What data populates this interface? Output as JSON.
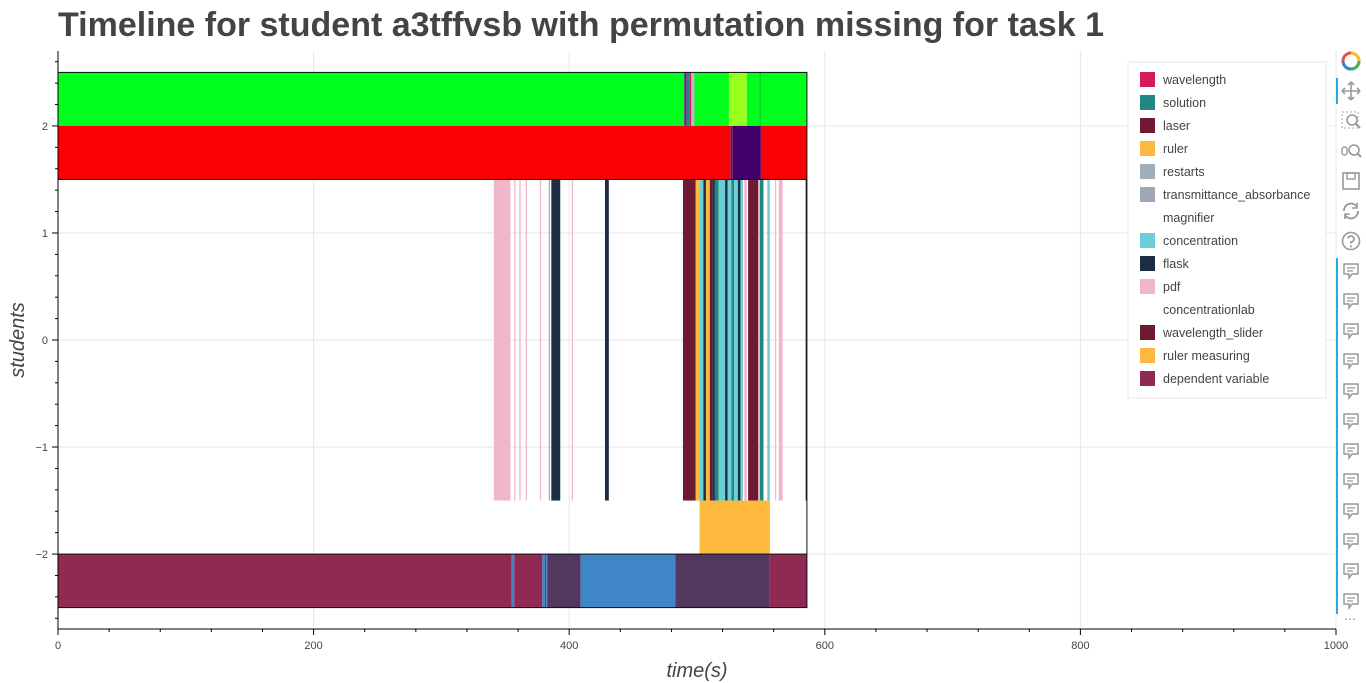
{
  "title": "Timeline for student a3tffvsb with permutation missing for task 1",
  "chart_data": {
    "type": "bar",
    "title": "Timeline for student a3tffvsb with permutation missing for task 1",
    "xlabel": "time(s)",
    "ylabel": "students",
    "xlim": [
      0,
      1000
    ],
    "ylim": [
      -2.7,
      2.7
    ],
    "x_ticks": [
      0,
      200,
      400,
      600,
      800,
      1000
    ],
    "y_ticks": [
      -2,
      -1,
      0,
      1,
      2
    ],
    "x_tick_labels": [
      "0",
      "200",
      "400",
      "600",
      "800",
      "1000"
    ],
    "y_tick_labels": [
      "−2",
      "−1",
      "0",
      "1",
      "2"
    ],
    "grid": true,
    "legend_position": "top-right",
    "legend": [
      {
        "label": "wavelength",
        "color": "#d6185c"
      },
      {
        "label": "solution",
        "color": "#208880"
      },
      {
        "label": "laser",
        "color": "#6e1a32"
      },
      {
        "label": "ruler",
        "color": "#fdb93e"
      },
      {
        "label": "restarts",
        "color": "#a0aeba"
      },
      {
        "label": "transmittance_absorbance",
        "color": "#9fa9b6"
      },
      {
        "label": "magnifier",
        "color": "#ffffff"
      },
      {
        "label": "concentration",
        "color": "#6ccfd7"
      },
      {
        "label": "flask",
        "color": "#1d2e44"
      },
      {
        "label": "pdf",
        "color": "#f2b6ca"
      },
      {
        "label": "concentrationlab",
        "color": "#ffffff"
      },
      {
        "label": "wavelength_slider",
        "color": "#6c1c30"
      },
      {
        "label": "ruler measuring",
        "color": "#fdb93e"
      },
      {
        "label": "dependent variable",
        "color": "#8f2a53"
      }
    ],
    "rows": [
      {
        "y0": 2.0,
        "y1": 2.5,
        "segments": [
          {
            "x0": 0,
            "x1": 490,
            "color": "#00ff1c"
          },
          {
            "x0": 490,
            "x1": 492,
            "color": "#5a2a80"
          },
          {
            "x0": 492,
            "x1": 494,
            "color": "#208880"
          },
          {
            "x0": 494,
            "x1": 495.5,
            "color": "#d6185c"
          },
          {
            "x0": 495.5,
            "x1": 498,
            "color": "#bbbbbb"
          },
          {
            "x0": 498,
            "x1": 525,
            "color": "#00ff1c"
          },
          {
            "x0": 525,
            "x1": 539,
            "color": "#98ff1e"
          },
          {
            "x0": 539,
            "x1": 586,
            "color": "#00ff1c"
          },
          {
            "x0": 549,
            "x1": 550,
            "color": "#12c838"
          }
        ]
      },
      {
        "y0": 1.5,
        "y1": 2.0,
        "segments": [
          {
            "x0": 0,
            "x1": 526,
            "color": "#fb0006"
          },
          {
            "x0": 526,
            "x1": 528,
            "color": "#7a1240"
          },
          {
            "x0": 528,
            "x1": 550,
            "color": "#43006b"
          },
          {
            "x0": 550,
            "x1": 586,
            "color": "#fb0006"
          }
        ]
      },
      {
        "y0": -1.5,
        "y1": 1.5,
        "segments": [
          {
            "x0": 341,
            "x1": 354,
            "color": "#f2b6ca"
          },
          {
            "x0": 357,
            "x1": 358,
            "color": "#f2b6ca"
          },
          {
            "x0": 361,
            "x1": 362,
            "color": "#f2b6ca"
          },
          {
            "x0": 366,
            "x1": 367,
            "color": "#f2b6ca"
          },
          {
            "x0": 377,
            "x1": 378,
            "color": "#f2b6ca"
          },
          {
            "x0": 384,
            "x1": 385,
            "color": "#a0aeba"
          },
          {
            "x0": 386,
            "x1": 393,
            "color": "#1d2e44"
          },
          {
            "x0": 402,
            "x1": 403,
            "color": "#f2b6ca"
          },
          {
            "x0": 428,
            "x1": 431,
            "color": "#1d2e44"
          },
          {
            "x0": 489,
            "x1": 499,
            "color": "#6e1a32"
          },
          {
            "x0": 499,
            "x1": 502,
            "color": "#fdb93e"
          },
          {
            "x0": 502,
            "x1": 505,
            "color": "#6ccfd7"
          },
          {
            "x0": 505,
            "x1": 507,
            "color": "#1d2e44"
          },
          {
            "x0": 507,
            "x1": 510,
            "color": "#fdb93e"
          },
          {
            "x0": 510,
            "x1": 512,
            "color": "#6e1a32"
          },
          {
            "x0": 512,
            "x1": 514,
            "color": "#1d2e44"
          },
          {
            "x0": 514,
            "x1": 517,
            "color": "#208880"
          },
          {
            "x0": 517,
            "x1": 522,
            "color": "#6ccfd7"
          },
          {
            "x0": 522,
            "x1": 524,
            "color": "#1d2e44"
          },
          {
            "x0": 524,
            "x1": 527,
            "color": "#6ccfd7"
          },
          {
            "x0": 527,
            "x1": 529,
            "color": "#208880"
          },
          {
            "x0": 529,
            "x1": 532,
            "color": "#6ccfd7"
          },
          {
            "x0": 532,
            "x1": 534,
            "color": "#1d2e44"
          },
          {
            "x0": 534,
            "x1": 536,
            "color": "#6ccfd7"
          },
          {
            "x0": 537,
            "x1": 539,
            "color": "#f2b6ca"
          },
          {
            "x0": 540,
            "x1": 548,
            "color": "#6e1a32"
          },
          {
            "x0": 549,
            "x1": 552,
            "color": "#208880"
          },
          {
            "x0": 555,
            "x1": 557,
            "color": "#6ccfd7"
          },
          {
            "x0": 561,
            "x1": 562,
            "color": "#f2b6ca"
          },
          {
            "x0": 564,
            "x1": 567,
            "color": "#f2b6ca"
          },
          {
            "x0": 585,
            "x1": 586,
            "color": "#1d2e44"
          }
        ]
      },
      {
        "y0": -2.0,
        "y1": -1.5,
        "segments": [
          {
            "x0": 502,
            "x1": 557,
            "color": "#fdb93e"
          }
        ]
      },
      {
        "y0": -2.5,
        "y1": -2.0,
        "segments": [
          {
            "x0": 0,
            "x1": 355,
            "color": "#8f2a53"
          },
          {
            "x0": 355,
            "x1": 357,
            "color": "#3f86c6"
          },
          {
            "x0": 357,
            "x1": 379,
            "color": "#8f2a53"
          },
          {
            "x0": 379,
            "x1": 381,
            "color": "#3f86c6"
          },
          {
            "x0": 381,
            "x1": 382,
            "color": "#8f2a53"
          },
          {
            "x0": 382,
            "x1": 383,
            "color": "#3f86c6"
          },
          {
            "x0": 383,
            "x1": 409,
            "color": "#52385e"
          },
          {
            "x0": 409,
            "x1": 483,
            "color": "#3f86c6"
          },
          {
            "x0": 483,
            "x1": 557,
            "color": "#52385e"
          },
          {
            "x0": 557,
            "x1": 586,
            "color": "#8f2a53"
          }
        ]
      }
    ],
    "outlined_regions": [
      {
        "x0": 0,
        "x1": 586,
        "y0": 1.5,
        "y1": 2.5
      },
      {
        "x0": 0,
        "x1": 586,
        "y0": -2.5,
        "y1": -2.0
      },
      {
        "x0": 586,
        "x1": 586,
        "y0": -2.0,
        "y1": 1.5
      }
    ]
  },
  "toolbar": {
    "tools": [
      {
        "name": "bokeh-logo-icon",
        "interactable": true,
        "active": false
      },
      {
        "name": "pan-icon",
        "interactable": true,
        "active": true
      },
      {
        "name": "box-zoom-icon",
        "interactable": true,
        "active": false
      },
      {
        "name": "wheel-zoom-icon",
        "interactable": true,
        "active": false
      },
      {
        "name": "save-icon",
        "interactable": true,
        "active": false
      },
      {
        "name": "reset-icon",
        "interactable": true,
        "active": false
      },
      {
        "name": "help-icon",
        "interactable": true,
        "active": false
      },
      {
        "name": "hover-icon",
        "count": 12,
        "interactable": true,
        "active": true
      }
    ],
    "more_label": "⋯",
    "accent_color": "#26aae1"
  }
}
